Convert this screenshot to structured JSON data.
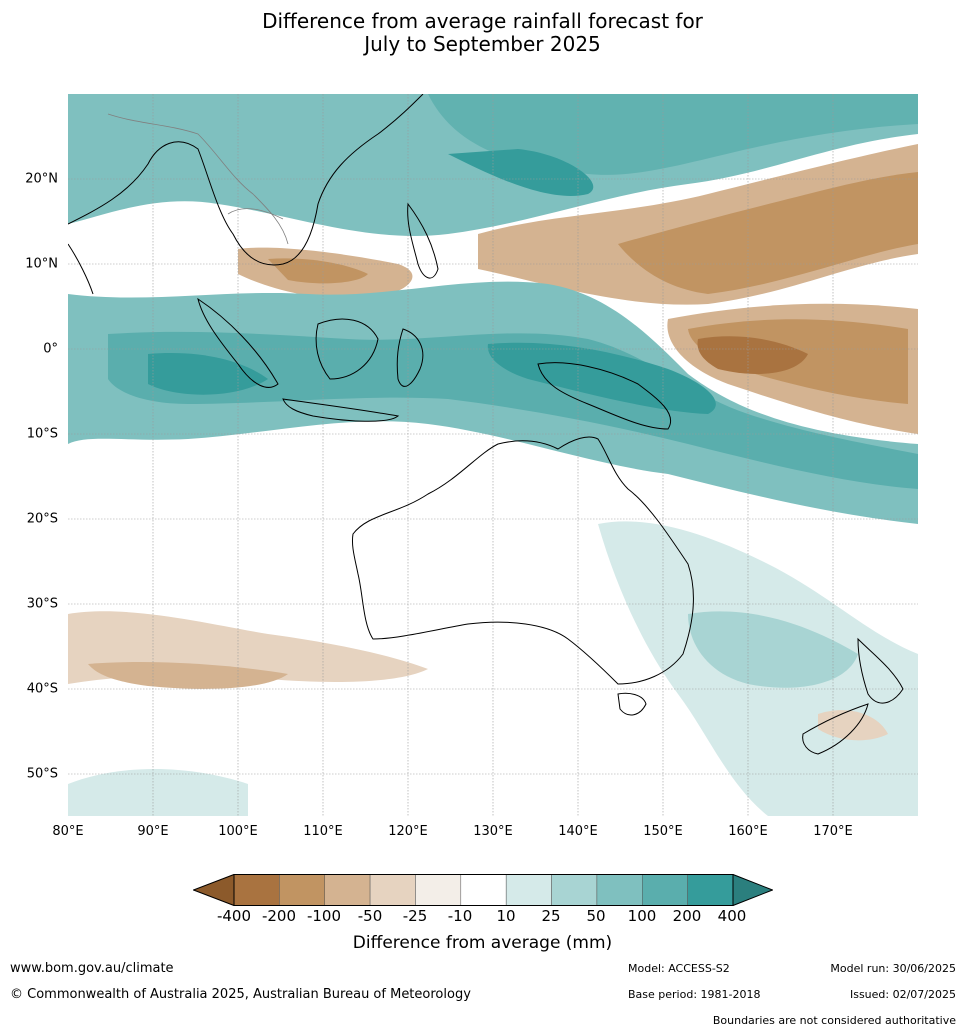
{
  "title": {
    "line1": "Difference from average rainfall forecast for",
    "line2": "July to September 2025"
  },
  "axes": {
    "lat_labels": [
      "20°N",
      "10°N",
      "0°",
      "10°S",
      "20°S",
      "30°S",
      "40°S",
      "50°S"
    ],
    "lon_labels": [
      "80°E",
      "90°E",
      "100°E",
      "110°E",
      "120°E",
      "130°E",
      "140°E",
      "150°E",
      "160°E",
      "170°E"
    ]
  },
  "colorbar": {
    "title": "Difference from average (mm)",
    "ticks": [
      "-400",
      "-200",
      "-100",
      "-50",
      "-25",
      "-10",
      "10",
      "25",
      "50",
      "100",
      "200",
      "400"
    ],
    "colors": {
      "below_-400": "#8c5a2b",
      "-400_-200": "#a97340",
      "-200_-100": "#c19462",
      "-100_-50": "#d4b391",
      "-50_-25": "#e6d3c0",
      "-25_-10": "#f3eee8",
      "-10_10": "#ffffff",
      "10_25": "#d5eae9",
      "25_50": "#a8d4d3",
      "50_100": "#7fc0bf",
      "100_200": "#5aaead",
      "200_400": "#359c9b",
      "above_400": "#2b7f7e"
    }
  },
  "footer": {
    "website": "www.bom.gov.au/climate",
    "copyright": "© Commonwealth of Australia 2025, Australian Bureau of Meteorology",
    "model": "Model: ACCESS-S2",
    "base_period": "Base period: 1981-2018",
    "model_run": "Model run: 30/06/2025",
    "issued": "Issued: 02/07/2025",
    "disclaimer": "Boundaries are not considered authoritative"
  }
}
